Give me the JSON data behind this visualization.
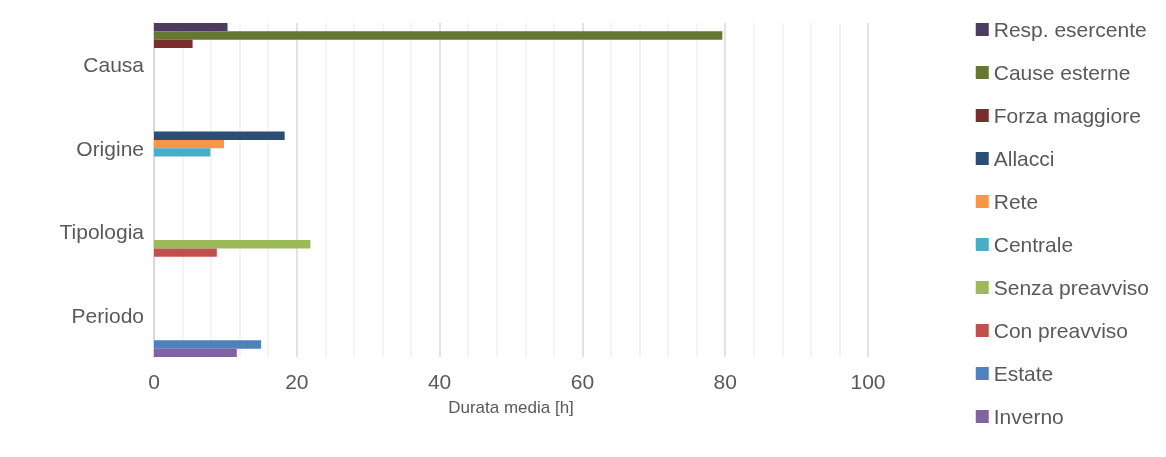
{
  "chart_data": {
    "type": "bar",
    "orientation": "horizontal",
    "xlabel": "Durata media [h]",
    "categories": [
      "Causa",
      "Origine",
      "Tipologia",
      "Periodo"
    ],
    "series": [
      {
        "name": "Resp. esercente",
        "color": "#4d3b62",
        "values": [
          10.3,
          null,
          null,
          null
        ]
      },
      {
        "name": "Cause esterne",
        "color": "#647733",
        "values": [
          79.6,
          null,
          null,
          null
        ]
      },
      {
        "name": "Forza maggiore",
        "color": "#7b2d2d",
        "values": [
          5.4,
          null,
          null,
          null
        ]
      },
      {
        "name": "Allacci",
        "color": "#2c4d75",
        "values": [
          null,
          18.3,
          null,
          null
        ]
      },
      {
        "name": "Rete",
        "color": "#f79646",
        "values": [
          null,
          9.8,
          null,
          null
        ]
      },
      {
        "name": "Centrale",
        "color": "#4bacc6",
        "values": [
          null,
          7.9,
          null,
          null
        ]
      },
      {
        "name": "Senza preavviso",
        "color": "#9bbb59",
        "values": [
          null,
          null,
          21.9,
          null
        ]
      },
      {
        "name": "Con preavviso",
        "color": "#c0504d",
        "values": [
          null,
          null,
          8.8,
          null
        ]
      },
      {
        "name": "Estate",
        "color": "#4f81bd",
        "values": [
          null,
          null,
          null,
          15.0
        ]
      },
      {
        "name": "Inverno",
        "color": "#8064a2",
        "values": [
          null,
          null,
          null,
          11.6
        ]
      }
    ],
    "xlim": [
      0,
      100
    ],
    "xticks": [
      0,
      20,
      40,
      60,
      80,
      100
    ],
    "grid": "x",
    "legend": "right"
  }
}
